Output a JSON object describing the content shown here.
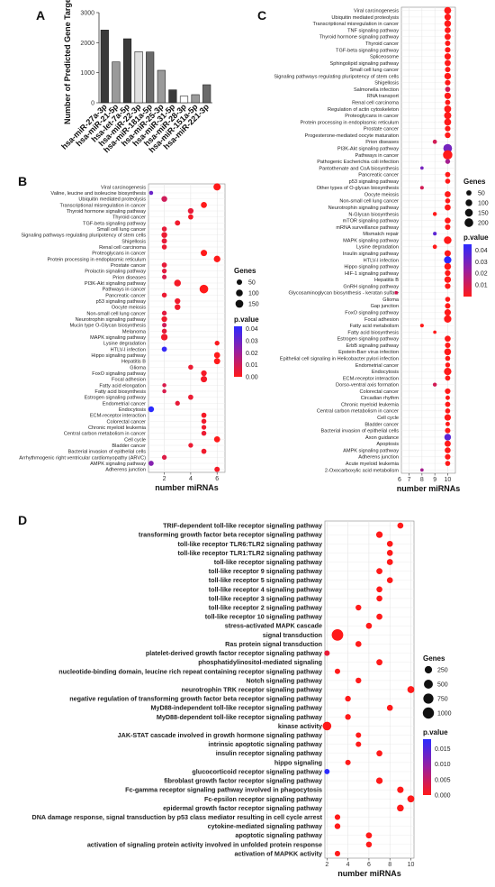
{
  "panels": {
    "A": "A",
    "B": "B",
    "C": "C",
    "D": "D"
  },
  "chart_data": [
    {
      "panel": "A",
      "type": "bar",
      "ylabel": "Number of Predicted Gene Targets",
      "xlabel": "",
      "ylim": [
        0,
        3000
      ],
      "yticks": [
        0,
        1000,
        2000,
        3000
      ],
      "categories": [
        "hsa-miR-27a-3p",
        "hsa-miR-21-5p",
        "hsa-let-7a-5p",
        "hsa-miR-22-3p",
        "hsa-miR-181a-5p",
        "hsa-miR-25-3p",
        "hsa-miR-31-5p",
        "hsa-miR-28-3p",
        "hsa-miR-151a-5p",
        "hsa-miR-221-3p"
      ],
      "values": [
        2420,
        1360,
        2130,
        1700,
        1690,
        1080,
        430,
        220,
        270,
        600
      ],
      "colors": [
        "#3a3a3a",
        "#9a9a9a",
        "#3a3a3a",
        "#e0e0e0",
        "#6a6a6a",
        "#9a9a9a",
        "#3a3a3a",
        "#ffffff",
        "#9a9a9a",
        "#6a6a6a"
      ]
    },
    {
      "panel": "B",
      "type": "scatter",
      "xlabel": "number miRNAs",
      "xlim": [
        0.8,
        6.6
      ],
      "xticks": [
        2,
        4,
        6
      ],
      "terms": [
        "Viral carcinogenesis",
        "Valine, leucine and isoleucine biosynthesis",
        "Ubiquitin mediated proteolysis",
        "Transcriptional misregulation in cancer",
        "Thyroid hormone signaling pathway",
        "Thyroid cancer",
        "TGF-beta signaling pathway",
        "Small cell lung cancer",
        "Signaling pathways regulating pluripotency of stem cells",
        "Shigellosis",
        "Renal cell carcinoma",
        "Proteoglycans in cancer",
        "Protein processing in endoplasmic reticulum",
        "Prostate cancer",
        "Prolactin signaling pathway",
        "Prion diseases",
        "PI3K-Akt signaling pathway",
        "Pathways in cancer",
        "Pancreatic cancer",
        "p53 signaling pathway",
        "Oocyte meiosis",
        "Non-small cell lung cancer",
        "Neurotrophin signaling pathway",
        "Mucin type O-Glycan biosynthesis",
        "Melanoma",
        "MAPK signaling pathway",
        "Lysine degradation",
        "HTLV-I infection",
        "Hippo signaling pathway",
        "Hepatitis B",
        "Glioma",
        "FoxO signaling pathway",
        "Focal adhesion",
        "Fatty acid elongation",
        "Fatty acid biosynthesis",
        "Estrogen signaling pathway",
        "Endometrial cancer",
        "Endocytosis",
        "ECM-receptor interaction",
        "Colorectal cancer",
        "Chronic myeloid leukemia",
        "Central carbon metabolism in cancer",
        "Cell cycle",
        "Bladder cancer",
        "Bacterial invasion of epithelial cells",
        "Arrhythmogenic right ventricular cardiomyopathy (ARVC)",
        "AMPK signaling pathway",
        "Adherens junction"
      ],
      "x": [
        6,
        1,
        2,
        5,
        4,
        4,
        3,
        2,
        2,
        2,
        2,
        5,
        6,
        2,
        2,
        2,
        3,
        5,
        2,
        3,
        3,
        2,
        2,
        2,
        2,
        2,
        6,
        2,
        6,
        6,
        4,
        5,
        5,
        2,
        2,
        4,
        3,
        1,
        5,
        5,
        5,
        5,
        6,
        4,
        5,
        2,
        1,
        6
      ],
      "genes": [
        120,
        15,
        60,
        70,
        55,
        40,
        45,
        35,
        60,
        45,
        35,
        80,
        90,
        40,
        30,
        25,
        100,
        200,
        35,
        55,
        60,
        30,
        55,
        25,
        35,
        90,
        30,
        40,
        70,
        75,
        35,
        55,
        80,
        15,
        15,
        40,
        30,
        60,
        40,
        35,
        30,
        35,
        70,
        30,
        40,
        30,
        40,
        45
      ],
      "pvalue": [
        0.0,
        0.03,
        0.01,
        0.0,
        0.005,
        0.002,
        0.003,
        0.005,
        0.004,
        0.005,
        0.004,
        0.0,
        0.0,
        0.005,
        0.006,
        0.008,
        0.002,
        0.0,
        0.004,
        0.003,
        0.003,
        0.006,
        0.003,
        0.01,
        0.005,
        0.003,
        0.001,
        0.04,
        0.0,
        0.0,
        0.004,
        0.002,
        0.002,
        0.008,
        0.008,
        0.004,
        0.005,
        0.042,
        0.002,
        0.003,
        0.003,
        0.004,
        0.0,
        0.004,
        0.003,
        0.007,
        0.025,
        0.002
      ],
      "legend": {
        "size_title": "Genes",
        "size_values": [
          50,
          100,
          150
        ],
        "color_title": "p.value",
        "color_ticks": [
          "0.04",
          "0.03",
          "0.02",
          "0.01",
          "0.00"
        ],
        "color_min": 0.0,
        "color_max": 0.042
      }
    },
    {
      "panel": "C",
      "type": "scatter",
      "xlabel": "number miRNAs",
      "xlim": [
        6.4,
        10.6
      ],
      "xticks": [
        6,
        7,
        8,
        9,
        10
      ],
      "terms": [
        "Viral carcinogenesis",
        "Ubiquitin mediated proteolysis",
        "Transcriptional misregulation in cancer",
        "TNF signaling pathway",
        "Thyroid hormone signaling pathway",
        "Thyroid cancer",
        "TGF-beta signaling pathway",
        "Spliceosome",
        "Sphingolipid signaling pathway",
        "Small cell lung cancer",
        "Signaling pathways regulating pluripotency of stem cells",
        "Shigellosis",
        "Salmonella infection",
        "RNA transport",
        "Renal cell carcinoma",
        "Regulation of actin cytoskeleton",
        "Proteoglycans in cancer",
        "Protein processing in endoplasmic reticulum",
        "Prostate cancer",
        "Progesterone-mediated oocyte maturation",
        "Prion diseases",
        "PI3K-Akt signaling pathway",
        "Pathways in cancer",
        "Pathogenic Escherichia coli infection",
        "Pantothenate and CoA biosynthesis",
        "Pancreatic cancer",
        "p53 signaling pathway",
        "Other types of O-glycan biosynthesis",
        "Oocyte meiosis",
        "Non-small cell lung cancer",
        "Neurotrophin signaling pathway",
        "N-Glycan biosynthesis",
        "mTOR signaling pathway",
        "mRNA surveillance pathway",
        "Mismatch repair",
        "MAPK signaling pathway",
        "Lysine degradation",
        "Insulin signaling pathway",
        "HTLV-I infection",
        "Hippo signaling pathway",
        "HIF-1 signaling pathway",
        "Hepatitis B",
        "GnRH signaling pathway",
        "Glycosaminoglycan biosynthesis - keratan sulfate",
        "Glioma",
        "Gap junction",
        "FoxO signaling pathway",
        "Focal adhesion",
        "Fatty acid metabolism",
        "Fatty acid biosynthesis",
        "Estrogen signaling pathway",
        "ErbB signaling pathway",
        "Epstein-Barr virus infection",
        "Epithelial cell signaling in Helicobacter pylori infection",
        "Endometrial cancer",
        "Endocytosis",
        "ECM-receptor interaction",
        "Dorso-ventral axis formation",
        "Colorectal cancer",
        "Circadian rhythm",
        "Chronic myeloid leukemia",
        "Central carbon metabolism in cancer",
        "Cell cycle",
        "Bladder cancer",
        "Bacterial invasion of epithelial cells",
        "Axon guidance",
        "Apoptosis",
        "AMPK signaling pathway",
        "Adherens junction",
        "Acute myeloid leukemia",
        "2-Oxocarboxylic acid metabolism"
      ],
      "x": [
        10,
        10,
        10,
        10,
        10,
        10,
        10,
        10,
        10,
        10,
        10,
        10,
        10,
        10,
        10,
        10,
        10,
        10,
        10,
        10,
        9,
        10,
        10,
        10,
        8,
        10,
        10,
        8,
        10,
        10,
        10,
        9,
        10,
        10,
        9,
        10,
        9,
        10,
        10,
        10,
        10,
        10,
        10,
        6,
        10,
        10,
        10,
        10,
        8,
        9,
        10,
        10,
        10,
        10,
        10,
        10,
        10,
        9,
        10,
        10,
        10,
        10,
        10,
        10,
        10,
        10,
        10,
        10,
        10,
        10,
        8
      ],
      "genes": [
        110,
        90,
        100,
        75,
        80,
        55,
        60,
        85,
        80,
        55,
        95,
        60,
        50,
        90,
        50,
        110,
        120,
        110,
        60,
        65,
        25,
        200,
        240,
        40,
        10,
        50,
        45,
        15,
        75,
        45,
        75,
        20,
        70,
        55,
        15,
        140,
        25,
        85,
        130,
        100,
        65,
        95,
        60,
        10,
        45,
        55,
        90,
        130,
        15,
        10,
        75,
        55,
        105,
        45,
        40,
        130,
        50,
        20,
        60,
        30,
        50,
        45,
        90,
        30,
        55,
        100,
        80,
        70,
        60,
        45,
        10
      ],
      "pvalue": [
        0.0,
        0.0,
        0.0,
        0.0,
        0.0,
        0.0,
        0.0,
        0.0,
        0.0,
        0.0,
        0.0,
        0.0,
        0.01,
        0.0,
        0.0,
        0.0,
        0.0,
        0.0,
        0.0,
        0.0,
        0.01,
        0.03,
        0.0,
        0.02,
        0.03,
        0.0,
        0.0,
        0.01,
        0.0,
        0.0,
        0.0,
        0.0,
        0.0,
        0.0,
        0.035,
        0.0,
        0.0,
        0.0,
        0.045,
        0.0,
        0.0,
        0.0,
        0.0,
        0.01,
        0.0,
        0.0,
        0.0,
        0.0,
        0.0,
        0.0,
        0.0,
        0.0,
        0.0,
        0.0,
        0.0,
        0.0,
        0.0,
        0.01,
        0.0,
        0.0,
        0.0,
        0.0,
        0.0,
        0.0,
        0.0,
        0.035,
        0.0,
        0.0,
        0.0,
        0.0,
        0.02
      ],
      "legend": {
        "size_title": "Genes",
        "size_values": [
          50,
          100,
          150,
          200
        ],
        "color_title": "p.value",
        "color_ticks": [
          "0.04",
          "0.03",
          "0.02",
          "0.01"
        ],
        "color_min": 0.0,
        "color_max": 0.045
      }
    },
    {
      "panel": "D",
      "type": "scatter",
      "xlabel": "number miRNAs",
      "xlim": [
        1.8,
        10.3
      ],
      "xticks": [
        2,
        4,
        6,
        8,
        10
      ],
      "terms": [
        "TRIF-dependent toll-like receptor signaling pathway",
        "transforming growth factor beta receptor signaling pathway",
        "toll-like receptor TLR6:TLR2 signaling pathway",
        "toll-like receptor TLR1:TLR2 signaling pathway",
        "toll-like receptor signaling pathway",
        "toll-like receptor 9 signaling pathway",
        "toll-like receptor 5 signaling pathway",
        "toll-like receptor 4 signaling pathway",
        "toll-like receptor 3 signaling pathway",
        "toll-like receptor 2 signaling pathway",
        "toll-like receptor 10 signaling pathway",
        "stress-activated MAPK cascade",
        "signal transduction",
        "Ras protein signal transduction",
        "platelet-derived growth factor receptor signaling pathway",
        "phosphatidylinositol-mediated signaling",
        "nucleotide-binding domain, leucine rich repeat containing receptor signaling pathway",
        "Notch signaling pathway",
        "neurotrophin TRK receptor signaling pathway",
        "negative regulation of transforming growth factor beta receptor signaling pathway",
        "MyD88-independent toll-like receptor signaling pathway",
        "MyD88-dependent toll-like receptor signaling pathway",
        "kinase activity",
        "JAK-STAT cascade involved in growth hormone signaling pathway",
        "intrinsic apoptotic signaling pathway",
        "insulin receptor signaling pathway",
        "hippo signaling",
        "glucocorticoid receptor signaling pathway",
        "fibroblast growth factor receptor signaling pathway",
        "Fc-gamma receptor signaling pathway involved in phagocytosis",
        "Fc-epsilon receptor signaling pathway",
        "epidermal growth factor receptor signaling pathway",
        "DNA damage response, signal transduction by p53 class mediator resulting in cell cycle arrest",
        "cytokine-mediated signaling pathway",
        "apoptotic signaling pathway",
        "activation of signaling protein activity involved in unfolded protein response",
        "activation of MAPKK activity"
      ],
      "x": [
        9,
        7,
        8,
        8,
        8,
        7,
        8,
        7,
        7,
        5,
        7,
        6,
        3,
        5,
        2,
        7,
        3,
        5,
        10,
        4,
        8,
        4,
        2,
        5,
        5,
        7,
        4,
        2,
        7,
        9,
        10,
        9,
        3,
        3,
        6,
        6,
        3
      ],
      "genes": [
        100,
        150,
        100,
        100,
        110,
        110,
        100,
        100,
        100,
        80,
        100,
        100,
        1100,
        100,
        60,
        110,
        60,
        80,
        200,
        80,
        100,
        80,
        450,
        60,
        60,
        100,
        60,
        50,
        150,
        140,
        200,
        180,
        70,
        80,
        110,
        90,
        60
      ],
      "pvalue": [
        0.0,
        0.0,
        0.0,
        0.0,
        0.0,
        0.0,
        0.0,
        0.0,
        0.0,
        0.0,
        0.0,
        0.0,
        0.0,
        0.0,
        0.002,
        0.0,
        0.0,
        0.0,
        0.0,
        0.0,
        0.0,
        0.0,
        0.0,
        0.0,
        0.0,
        0.0,
        0.0,
        0.018,
        0.0,
        0.0,
        0.0,
        0.0,
        0.0,
        0.0,
        0.0,
        0.0,
        0.0
      ],
      "legend": {
        "size_title": "Genes",
        "size_values": [
          250,
          500,
          750,
          1000
        ],
        "color_title": "p.value",
        "color_ticks": [
          "0.015",
          "0.010",
          "0.005",
          "0.000"
        ],
        "color_min": 0.0,
        "color_max": 0.018
      }
    }
  ]
}
